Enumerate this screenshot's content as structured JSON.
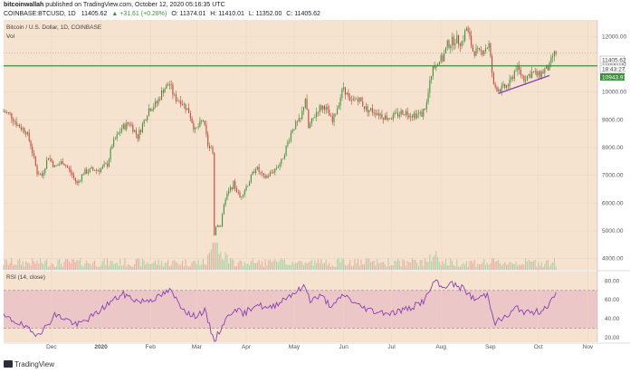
{
  "header": {
    "author": "bitcoinwallah",
    "published_text": "published on TradingView.com, October 12, 2020 05:16:35 UTC",
    "symbol": "COINBASE:BTCUSD, 1D",
    "price": "11405.62",
    "change": "▲ +31.61 (+0.28%)",
    "o": "O: 11374.01",
    "h": "H: 11410.01",
    "l": "L: 11352.00",
    "c": "C: 11405.62"
  },
  "legend": {
    "title": "Bitcoin / U.S. Dollar, 1D, COINBASE",
    "vol": "Vol",
    "rsi": "RSI (14, close)"
  },
  "price_labels": {
    "last": "11405.62",
    "countdown": "18:43:27",
    "support": "10943.97"
  },
  "colors": {
    "up": "#3c8f3c",
    "down": "#c0413a",
    "bg": "#f5e3cf",
    "rsi_band": "#ebc7c7",
    "rsi_line": "#8a3fb5",
    "support": "#3c8f3c",
    "trendline": "#8a3fb5"
  },
  "chart_data": [
    {
      "type": "candlestick",
      "title": "Bitcoin / U.S. Dollar, 1D, COINBASE",
      "x_tick_labels": [
        "Dec",
        "2020",
        "Feb",
        "Mar",
        "Apr",
        "May",
        "Jun",
        "Jul",
        "Aug",
        "Sep",
        "Oct",
        "Nov"
      ],
      "y_tick_labels": [
        "12000.00",
        "11000.00",
        "10000.00",
        "9000.00",
        "8000.00",
        "7000.00",
        "6000.00",
        "5000.00",
        "4000.00"
      ],
      "ylim": [
        3600,
        12600
      ],
      "support_level": 10943.97,
      "last_price": 11405.62,
      "close_path": [
        [
          "2019-11-01",
          9300
        ],
        [
          "2019-11-05",
          9200
        ],
        [
          "2019-11-10",
          8800
        ],
        [
          "2019-11-15",
          8600
        ],
        [
          "2019-11-18",
          8100
        ],
        [
          "2019-11-22",
          7100
        ],
        [
          "2019-11-25",
          7000
        ],
        [
          "2019-11-29",
          7700
        ],
        [
          "2019-12-03",
          7300
        ],
        [
          "2019-12-08",
          7500
        ],
        [
          "2019-12-12",
          7200
        ],
        [
          "2019-12-17",
          6700
        ],
        [
          "2019-12-21",
          7100
        ],
        [
          "2019-12-26",
          7200
        ],
        [
          "2019-12-31",
          7200
        ],
        [
          "2020-01-05",
          7400
        ],
        [
          "2020-01-08",
          8100
        ],
        [
          "2020-01-14",
          8700
        ],
        [
          "2020-01-19",
          8900
        ],
        [
          "2020-01-24",
          8400
        ],
        [
          "2020-01-31",
          9400
        ],
        [
          "2020-02-05",
          9600
        ],
        [
          "2020-02-09",
          10100
        ],
        [
          "2020-02-13",
          10300
        ],
        [
          "2020-02-16",
          9800
        ],
        [
          "2020-02-20",
          9700
        ],
        [
          "2020-02-25",
          9300
        ],
        [
          "2020-02-29",
          8600
        ],
        [
          "2020-03-05",
          9000
        ],
        [
          "2020-03-08",
          8100
        ],
        [
          "2020-03-11",
          7900
        ],
        [
          "2020-03-12",
          4900
        ],
        [
          "2020-03-13",
          5200
        ],
        [
          "2020-03-16",
          5200
        ],
        [
          "2020-03-19",
          6200
        ],
        [
          "2020-03-24",
          6700
        ],
        [
          "2020-03-28",
          6200
        ],
        [
          "2020-04-03",
          6800
        ],
        [
          "2020-04-07",
          7300
        ],
        [
          "2020-04-12",
          6900
        ],
        [
          "2020-04-17",
          7100
        ],
        [
          "2020-04-23",
          7500
        ],
        [
          "2020-04-30",
          8700
        ],
        [
          "2020-05-05",
          9000
        ],
        [
          "2020-05-08",
          9800
        ],
        [
          "2020-05-10",
          8700
        ],
        [
          "2020-05-16",
          9400
        ],
        [
          "2020-05-20",
          9500
        ],
        [
          "2020-05-25",
          8900
        ],
        [
          "2020-06-01",
          10200
        ],
        [
          "2020-06-05",
          9600
        ],
        [
          "2020-06-10",
          9800
        ],
        [
          "2020-06-15",
          9400
        ],
        [
          "2020-06-21",
          9300
        ],
        [
          "2020-06-27",
          9100
        ],
        [
          "2020-07-02",
          9100
        ],
        [
          "2020-07-08",
          9300
        ],
        [
          "2020-07-14",
          9200
        ],
        [
          "2020-07-20",
          9200
        ],
        [
          "2020-07-23",
          9600
        ],
        [
          "2020-07-27",
          11000
        ],
        [
          "2020-08-02",
          11200
        ],
        [
          "2020-08-05",
          11700
        ],
        [
          "2020-08-10",
          11900
        ],
        [
          "2020-08-14",
          11800
        ],
        [
          "2020-08-17",
          12300
        ],
        [
          "2020-08-21",
          11500
        ],
        [
          "2020-08-25",
          11400
        ],
        [
          "2020-08-31",
          11700
        ],
        [
          "2020-09-03",
          10200
        ],
        [
          "2020-09-08",
          10100
        ],
        [
          "2020-09-13",
          10300
        ],
        [
          "2020-09-17",
          10900
        ],
        [
          "2020-09-22",
          10500
        ],
        [
          "2020-09-27",
          10700
        ],
        [
          "2020-10-01",
          10600
        ],
        [
          "2020-10-05",
          10800
        ],
        [
          "2020-10-08",
          10900
        ],
        [
          "2020-10-10",
          11300
        ],
        [
          "2020-10-12",
          11406
        ]
      ]
    },
    {
      "type": "line",
      "title": "RSI (14, close)",
      "y_tick_labels": [
        "80.00",
        "60.00",
        "40.00",
        "20.00"
      ],
      "ylim": [
        15,
        90
      ],
      "band": [
        30,
        70
      ],
      "values_path": [
        [
          "2019-11-01",
          42
        ],
        [
          "2019-11-10",
          36
        ],
        [
          "2019-11-20",
          24
        ],
        [
          "2019-11-26",
          28
        ],
        [
          "2019-12-03",
          44
        ],
        [
          "2019-12-10",
          40
        ],
        [
          "2019-12-17",
          33
        ],
        [
          "2019-12-28",
          44
        ],
        [
          "2020-01-07",
          58
        ],
        [
          "2020-01-15",
          66
        ],
        [
          "2020-01-25",
          58
        ],
        [
          "2020-02-05",
          62
        ],
        [
          "2020-02-13",
          70
        ],
        [
          "2020-02-20",
          54
        ],
        [
          "2020-02-27",
          42
        ],
        [
          "2020-03-06",
          48
        ],
        [
          "2020-03-12",
          16
        ],
        [
          "2020-03-18",
          36
        ],
        [
          "2020-03-25",
          52
        ],
        [
          "2020-03-30",
          44
        ],
        [
          "2020-04-07",
          56
        ],
        [
          "2020-04-15",
          50
        ],
        [
          "2020-04-29",
          66
        ],
        [
          "2020-05-08",
          74
        ],
        [
          "2020-05-11",
          60
        ],
        [
          "2020-05-18",
          64
        ],
        [
          "2020-05-25",
          52
        ],
        [
          "2020-06-01",
          66
        ],
        [
          "2020-06-10",
          54
        ],
        [
          "2020-06-20",
          48
        ],
        [
          "2020-07-01",
          46
        ],
        [
          "2020-07-14",
          52
        ],
        [
          "2020-07-22",
          60
        ],
        [
          "2020-07-28",
          80
        ],
        [
          "2020-08-02",
          72
        ],
        [
          "2020-08-06",
          78
        ],
        [
          "2020-08-15",
          72
        ],
        [
          "2020-08-22",
          60
        ],
        [
          "2020-08-30",
          66
        ],
        [
          "2020-09-04",
          36
        ],
        [
          "2020-09-13",
          44
        ],
        [
          "2020-09-17",
          52
        ],
        [
          "2020-09-24",
          46
        ],
        [
          "2020-10-02",
          48
        ],
        [
          "2020-10-08",
          56
        ],
        [
          "2020-10-12",
          65
        ]
      ]
    }
  ]
}
